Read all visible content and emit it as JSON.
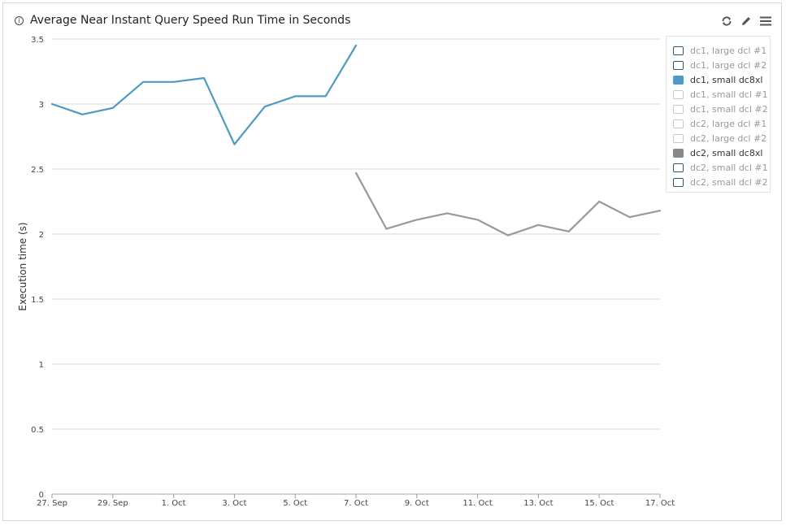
{
  "header": {
    "info_icon": "info-icon",
    "title": "Average Near Instant Query Speed Run Time in Seconds",
    "tools": [
      {
        "name": "refresh-icon"
      },
      {
        "name": "edit-icon"
      },
      {
        "name": "menu-icon"
      }
    ]
  },
  "legend": {
    "placement": "right",
    "items": [
      {
        "label": "dc1, large dcl #1",
        "state": "inactive",
        "color": "#2b5a6e"
      },
      {
        "label": "dc1, large dcl #2",
        "state": "inactive",
        "color": "#2b5a6e"
      },
      {
        "label": "dc1, small dc8xl",
        "state": "active",
        "color": "#4e9ac4"
      },
      {
        "label": "dc1, small dcl #1",
        "state": "hidden",
        "color": "#c8c8c8"
      },
      {
        "label": "dc1, small dcl #2",
        "state": "hidden",
        "color": "#c8c8c8"
      },
      {
        "label": "dc2, large dcl #1",
        "state": "hidden",
        "color": "#c8c8c8"
      },
      {
        "label": "dc2, large dcl #2",
        "state": "hidden",
        "color": "#c8c8c8"
      },
      {
        "label": "dc2, small dc8xl",
        "state": "active",
        "color": "#888888"
      },
      {
        "label": "dc2, small dcl #1",
        "state": "inactive",
        "color": "#2b5a6e"
      },
      {
        "label": "dc2, small dcl #2",
        "state": "inactive",
        "color": "#2b5a6e"
      }
    ]
  },
  "chart_data": {
    "type": "line",
    "title": "Average Near Instant Query Speed Run Time in Seconds",
    "xlabel": "",
    "ylabel": "Execution time (s)",
    "ylim": [
      0,
      3.5
    ],
    "yticks": [
      "0",
      "0.5",
      "1",
      "1.5",
      "2",
      "2.5",
      "3",
      "3.5"
    ],
    "xlim": [
      "2017-09-27",
      "2017-10-17"
    ],
    "xticks": [
      {
        "date": "2017-09-27",
        "label": "27. Sep"
      },
      {
        "date": "2017-09-29",
        "label": "29. Sep"
      },
      {
        "date": "2017-10-01",
        "label": "1. Oct"
      },
      {
        "date": "2017-10-03",
        "label": "3. Oct"
      },
      {
        "date": "2017-10-05",
        "label": "5. Oct"
      },
      {
        "date": "2017-10-07",
        "label": "7. Oct"
      },
      {
        "date": "2017-10-09",
        "label": "9. Oct"
      },
      {
        "date": "2017-10-11",
        "label": "11. Oct"
      },
      {
        "date": "2017-10-13",
        "label": "13. Oct"
      },
      {
        "date": "2017-10-15",
        "label": "15. Oct"
      },
      {
        "date": "2017-10-17",
        "label": "17. Oct"
      }
    ],
    "grid": true,
    "series": [
      {
        "name": "dc1, small dc8xl",
        "color": "#4e9ac4",
        "x": [
          "2017-09-27",
          "2017-09-28",
          "2017-09-29",
          "2017-09-30",
          "2017-10-01",
          "2017-10-02",
          "2017-10-03",
          "2017-10-04",
          "2017-10-05",
          "2017-10-06",
          "2017-10-07"
        ],
        "values": [
          3.0,
          2.92,
          2.97,
          3.17,
          3.17,
          3.2,
          2.69,
          2.98,
          3.06,
          3.06,
          3.45
        ]
      },
      {
        "name": "dc2, small dc8xl",
        "color": "#999999",
        "x": [
          "2017-10-07",
          "2017-10-08",
          "2017-10-09",
          "2017-10-10",
          "2017-10-11",
          "2017-10-12",
          "2017-10-13",
          "2017-10-14",
          "2017-10-15",
          "2017-10-16",
          "2017-10-17"
        ],
        "values": [
          2.47,
          2.04,
          2.11,
          2.16,
          2.11,
          1.99,
          2.07,
          2.02,
          2.25,
          2.13,
          2.18
        ]
      }
    ]
  }
}
